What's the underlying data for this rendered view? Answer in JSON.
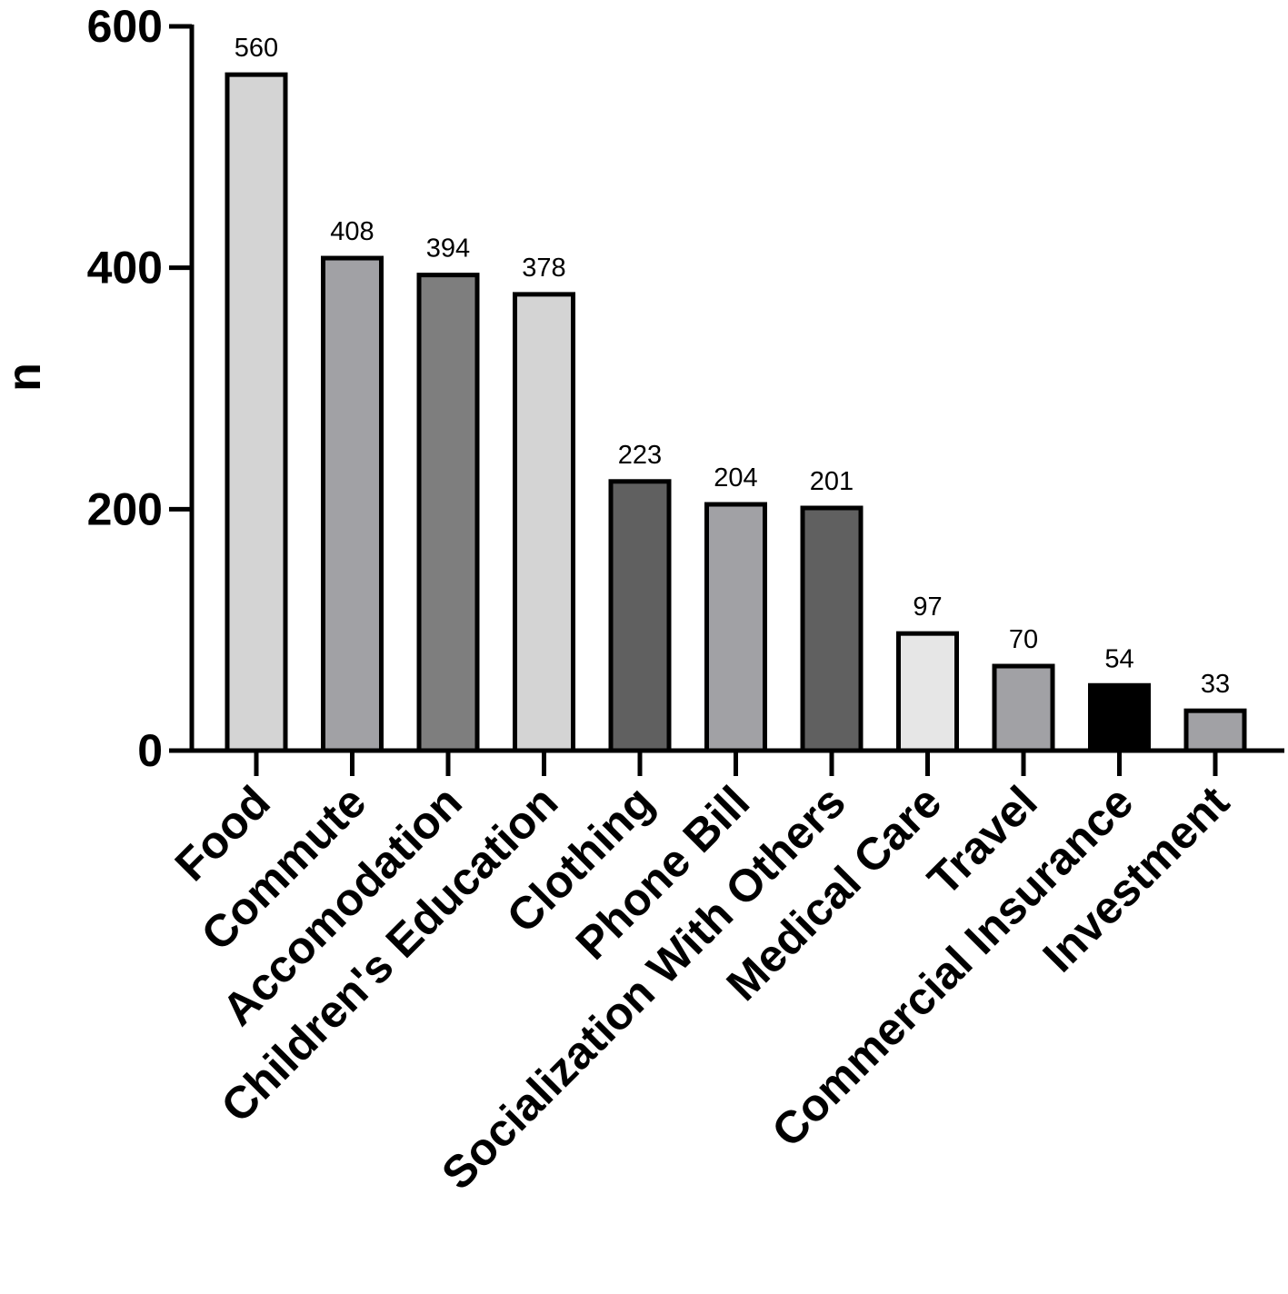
{
  "chart_data": {
    "type": "bar",
    "title": "",
    "xlabel": "",
    "ylabel": "n",
    "ylim": [
      0,
      600
    ],
    "yticks": [
      0,
      200,
      400,
      600
    ],
    "grid": false,
    "categories": [
      "Food",
      "Commute",
      "Accomodation",
      "Children's Education",
      "Clothing",
      "Phone Bill",
      "Socialization With Others",
      "Medical Care",
      "Travel",
      "Commercial Insurance",
      "Investment"
    ],
    "values": [
      560,
      408,
      394,
      378,
      223,
      204,
      201,
      97,
      70,
      54,
      33
    ],
    "colors": [
      "#d4d4d4",
      "#a1a1a5",
      "#7e7e7e",
      "#d4d4d4",
      "#606060",
      "#a1a1a5",
      "#606060",
      "#e6e6e6",
      "#a1a1a5",
      "#000000",
      "#a1a1a5"
    ]
  }
}
